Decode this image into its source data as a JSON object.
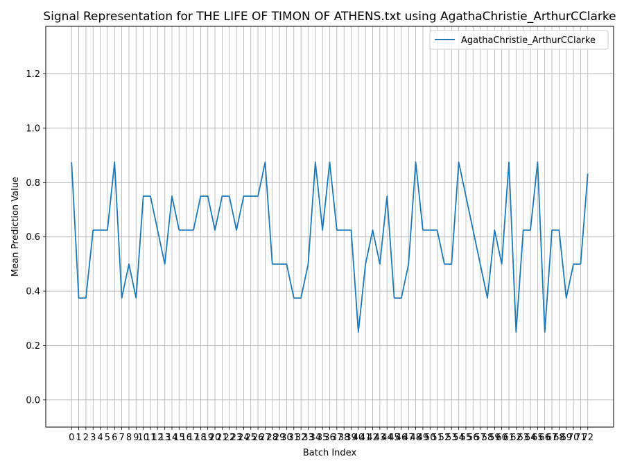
{
  "chart_data": {
    "type": "line",
    "title": "Signal Representation for THE LIFE OF TIMON OF ATHENS.txt using AgathaChristie_ArthurCClarke",
    "xlabel": "Batch Index",
    "ylabel": "Mean Prediction Value",
    "xlim": [
      -3.6,
      75.6
    ],
    "ylim": [
      -0.1,
      1.375
    ],
    "grid": true,
    "legend_position": "top-right",
    "x_ticks": [
      0,
      1,
      2,
      3,
      4,
      5,
      6,
      7,
      8,
      9,
      10,
      11,
      12,
      13,
      14,
      15,
      16,
      17,
      18,
      19,
      20,
      21,
      22,
      23,
      24,
      25,
      26,
      27,
      28,
      29,
      30,
      31,
      32,
      33,
      34,
      35,
      36,
      37,
      38,
      39,
      40,
      41,
      42,
      43,
      44,
      45,
      46,
      47,
      48,
      49,
      50,
      51,
      52,
      53,
      54,
      55,
      56,
      57,
      58,
      59,
      60,
      61,
      62,
      63,
      64,
      65,
      66,
      67,
      68,
      69,
      70,
      71,
      72
    ],
    "y_ticks": [
      "0.0",
      "0.2",
      "0.4",
      "0.6",
      "0.8",
      "1.0",
      "1.2"
    ],
    "y_tick_values": [
      0.0,
      0.2,
      0.4,
      0.6,
      0.8,
      1.0,
      1.2
    ],
    "series": [
      {
        "name": "AgathaChristie_ArthurCClarke",
        "color": "#1f77b4",
        "x": [
          0,
          1,
          2,
          3,
          4,
          5,
          6,
          7,
          8,
          9,
          10,
          11,
          12,
          13,
          14,
          15,
          16,
          17,
          18,
          19,
          20,
          21,
          22,
          23,
          24,
          25,
          26,
          27,
          28,
          29,
          30,
          31,
          32,
          33,
          34,
          35,
          36,
          37,
          38,
          39,
          40,
          41,
          42,
          43,
          44,
          45,
          46,
          47,
          48,
          49,
          50,
          51,
          52,
          53,
          54,
          55,
          56,
          57,
          58,
          59,
          60,
          61,
          62,
          63,
          64,
          65,
          66,
          67,
          68,
          69,
          70,
          71,
          72
        ],
        "values": [
          0.875,
          0.375,
          0.375,
          0.625,
          0.625,
          0.625,
          0.875,
          0.375,
          0.5,
          0.375,
          0.75,
          0.75,
          0.625,
          0.5,
          0.75,
          0.625,
          0.625,
          0.625,
          0.75,
          0.75,
          0.625,
          0.75,
          0.75,
          0.625,
          0.75,
          0.75,
          0.75,
          0.875,
          0.5,
          0.5,
          0.5,
          0.375,
          0.375,
          0.5,
          0.875,
          0.625,
          0.875,
          0.625,
          0.625,
          0.625,
          0.25,
          0.5,
          0.625,
          0.5,
          0.75,
          0.375,
          0.375,
          0.5,
          0.875,
          0.625,
          0.625,
          0.625,
          0.5,
          0.5,
          0.875,
          0.75,
          0.625,
          0.5,
          0.375,
          0.625,
          0.5,
          0.875,
          0.25,
          0.625,
          0.625,
          0.875,
          0.25,
          0.625,
          0.625,
          0.375,
          0.5,
          0.5,
          0.833
        ]
      }
    ]
  }
}
